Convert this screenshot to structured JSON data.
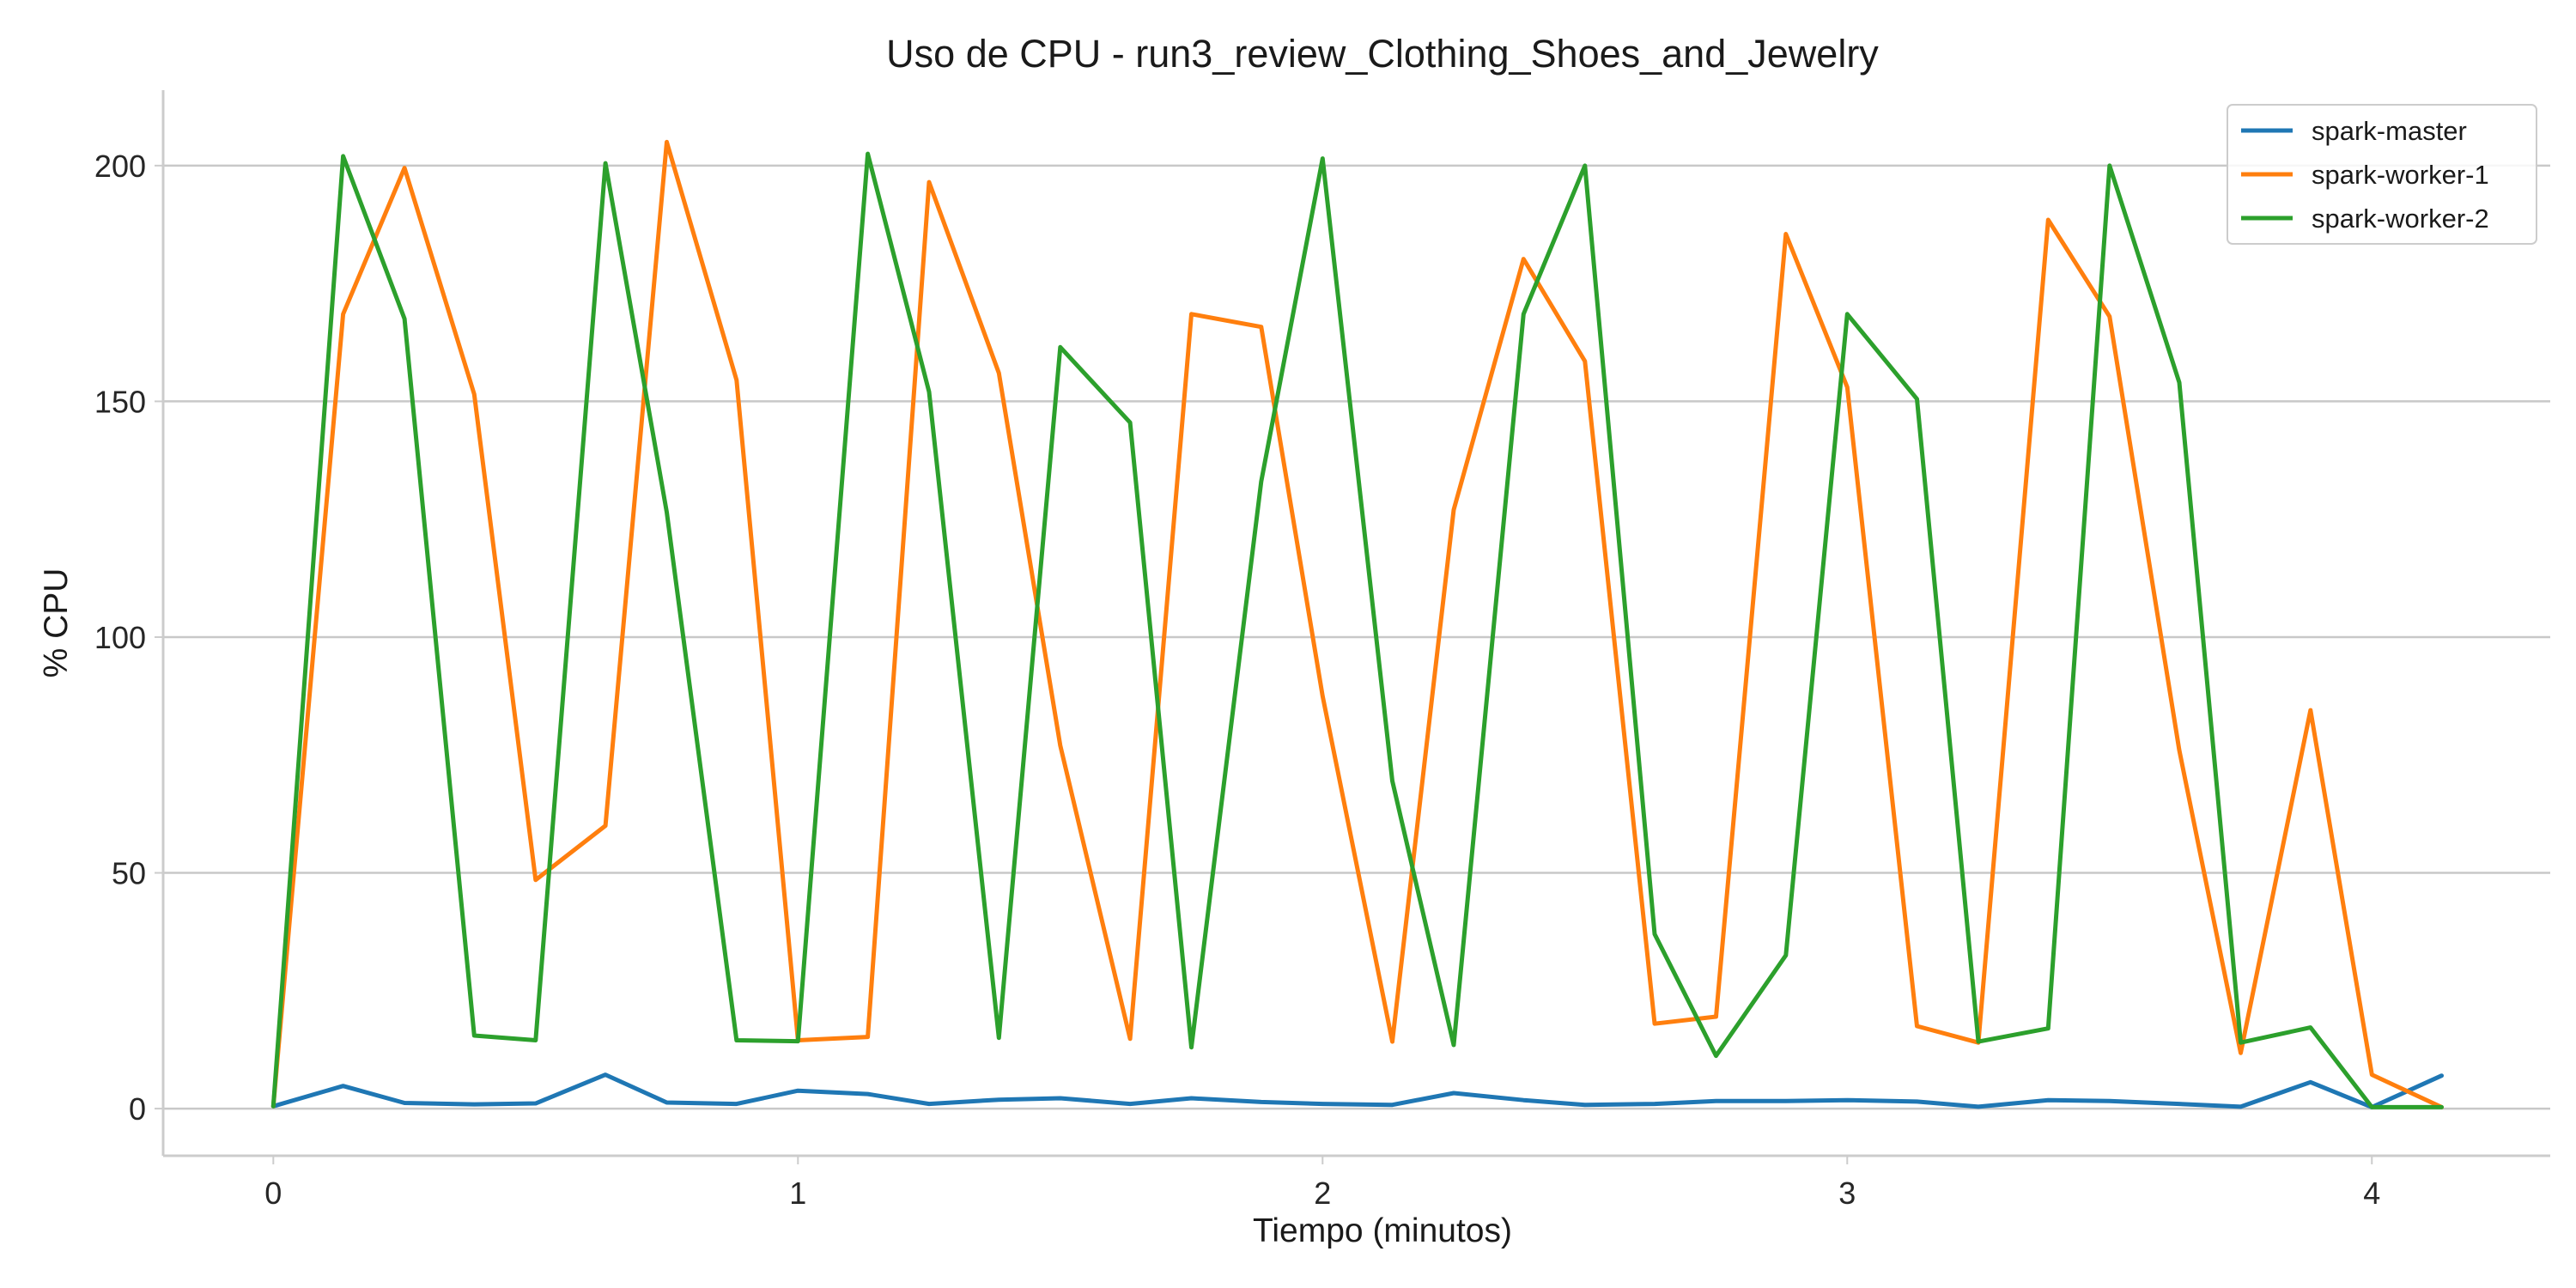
{
  "chart_data": {
    "type": "line",
    "title": "Uso de CPU - run3_review_Clothing_Shoes_and_Jewelry",
    "xlabel": "Tiempo (minutos)",
    "ylabel": "% CPU",
    "xlim": [
      -0.21,
      4.34
    ],
    "ylim": [
      -10,
      216
    ],
    "xticks": [
      0,
      1,
      2,
      3,
      4
    ],
    "xtick_labels": [
      "0",
      "1",
      "2",
      "3",
      "4"
    ],
    "yticks": [
      0,
      50,
      100,
      150,
      200
    ],
    "ytick_labels": [
      "0",
      "50",
      "100",
      "150",
      "200"
    ],
    "grid": "horizontal",
    "legend_position": "top-right",
    "x": [
      0,
      0.133,
      0.25,
      0.383,
      0.5,
      0.633,
      0.75,
      0.883,
      1.0,
      1.133,
      1.25,
      1.383,
      1.5,
      1.633,
      1.75,
      1.883,
      2.0,
      2.133,
      2.25,
      2.383,
      2.5,
      2.633,
      2.75,
      2.883,
      3.0,
      3.133,
      3.25,
      3.383,
      3.5,
      3.633,
      3.75,
      3.883,
      4.0,
      4.133
    ],
    "series": [
      {
        "name": "spark-master",
        "color": "#1f77b4",
        "values": [
          0.5,
          4.8,
          1.2,
          0.9,
          1.1,
          7.2,
          1.3,
          1.0,
          3.8,
          3.1,
          1.0,
          1.9,
          2.2,
          1.0,
          2.2,
          1.4,
          1.0,
          0.8,
          3.3,
          1.8,
          0.8,
          1.0,
          1.6,
          1.6,
          1.8,
          1.5,
          0.4,
          1.8,
          1.6,
          1.0,
          0.4,
          5.6,
          0.3,
          7.0
        ]
      },
      {
        "name": "spark-worker-1",
        "color": "#ff7f0e",
        "values": [
          0.5,
          168.5,
          199.5,
          151.5,
          48.5,
          60.0,
          205.0,
          154.5,
          14.5,
          15.2,
          196.5,
          156.0,
          77.0,
          14.8,
          168.5,
          165.8,
          87.5,
          14.2,
          127.0,
          180.2,
          158.5,
          18.0,
          19.5,
          185.5,
          153.0,
          17.5,
          14.0,
          188.5,
          168.0,
          76.0,
          11.8,
          84.5,
          7.2,
          0.3
        ]
      },
      {
        "name": "spark-worker-2",
        "color": "#2ca02c",
        "values": [
          0.5,
          202.0,
          167.5,
          15.5,
          14.5,
          200.5,
          126.5,
          14.5,
          14.3,
          202.5,
          152.0,
          15.0,
          161.5,
          145.5,
          13.0,
          133.0,
          201.5,
          69.5,
          13.5,
          168.5,
          200.0,
          37.0,
          11.2,
          32.5,
          168.5,
          150.5,
          14.2,
          17.0,
          200.0,
          154.0,
          14.0,
          17.2,
          0.3,
          0.3
        ]
      }
    ]
  }
}
